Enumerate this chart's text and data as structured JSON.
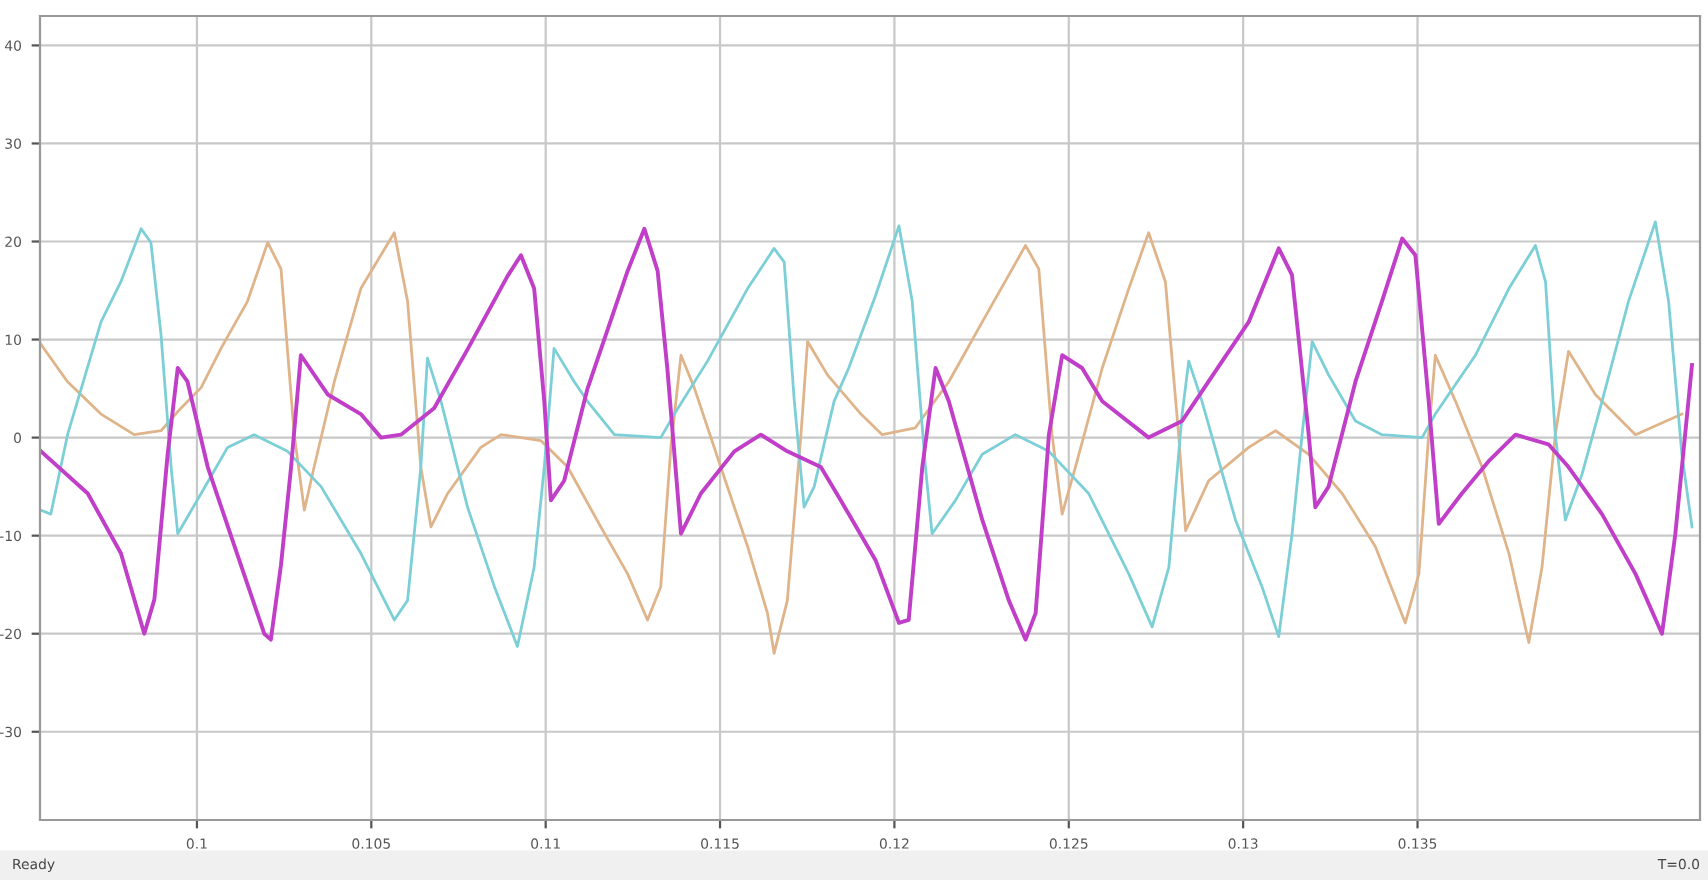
{
  "chart_data": {
    "type": "line",
    "xlim": [
      0.0955,
      0.1431
    ],
    "xticks": [
      0.1,
      0.105,
      0.11,
      0.115,
      0.12,
      0.125,
      0.13,
      0.135
    ],
    "ylim": [
      -39,
      43
    ],
    "yticks": [
      -30,
      -20,
      -10,
      0,
      10,
      20,
      30,
      40
    ],
    "grid": true,
    "annotations": [
      "Ready",
      "T=0.0"
    ],
    "series": [
      {
        "color": "#e0b48a",
        "x": [
          0.09553,
          0.09629,
          0.09725,
          0.0982,
          0.09897,
          0.09954,
          0.10012,
          0.10069,
          0.10145,
          0.10203,
          0.10241,
          0.10279,
          0.10308,
          0.10336,
          0.10394,
          0.1047,
          0.10566,
          0.10604,
          0.10642,
          0.10671,
          0.10719,
          0.10814,
          0.10872,
          0.10986,
          0.11063,
          0.11158,
          0.11235,
          0.11292,
          0.1133,
          0.11359,
          0.11388,
          0.11426,
          0.11502,
          0.11579,
          0.11636,
          0.11655,
          0.11693,
          0.11732,
          0.11751,
          0.11808,
          0.11904,
          0.11965,
          0.1206,
          0.12156,
          0.12252,
          0.12376,
          0.12414,
          0.12452,
          0.12481,
          0.12519,
          0.12596,
          0.12672,
          0.12729,
          0.12777,
          0.12815,
          0.12835,
          0.12901,
          0.13016,
          0.13093,
          0.13188,
          0.13284,
          0.13379,
          0.13465,
          0.13504,
          0.13532,
          0.13551,
          0.13609,
          0.13685,
          0.13762,
          0.13819,
          0.13857,
          0.13895,
          0.13933,
          0.1401,
          0.14125,
          0.14258
        ],
        "values": [
          9.5,
          5.7,
          2.4,
          0.3,
          0.7,
          3,
          5.1,
          9.1,
          13.9,
          19.9,
          17.2,
          0.3,
          -7.4,
          -3,
          5.7,
          15.2,
          20.9,
          13.9,
          -3,
          -9.1,
          -5.7,
          -1,
          0.3,
          -0.3,
          -3,
          -9.1,
          -13.9,
          -18.6,
          -15.2,
          -1,
          8.4,
          5.1,
          -3,
          -11.1,
          -17.9,
          -22,
          -16.6,
          0.3,
          9.8,
          6.4,
          2.4,
          0.3,
          1,
          5.7,
          11.8,
          19.6,
          17.2,
          0.3,
          -7.8,
          -3,
          7.1,
          15.2,
          20.9,
          15.9,
          0.3,
          -9.5,
          -4.4,
          -1,
          0.7,
          -1.7,
          -5.7,
          -11.1,
          -18.9,
          -13.9,
          0.3,
          8.4,
          3.7,
          -3,
          -11.8,
          -20.9,
          -13.2,
          0.3,
          8.8,
          4.4,
          0.3,
          2.4
        ]
      },
      {
        "color": "#7ccfd6",
        "x": [
          0.09553,
          0.09581,
          0.09629,
          0.09725,
          0.09782,
          0.0984,
          0.09868,
          0.09897,
          0.09926,
          0.09945,
          0.10012,
          0.10088,
          0.10164,
          0.1026,
          0.10356,
          0.1047,
          0.10566,
          0.10604,
          0.10642,
          0.10661,
          0.107,
          0.10776,
          0.10853,
          0.10919,
          0.10967,
          0.10996,
          0.11024,
          0.11082,
          0.1112,
          0.11197,
          0.1133,
          0.11369,
          0.11464,
          0.11579,
          0.11655,
          0.11684,
          0.11713,
          0.11741,
          0.1177,
          0.11827,
          0.11869,
          0.11946,
          0.12013,
          0.12051,
          0.12089,
          0.12108,
          0.12175,
          0.12252,
          0.12347,
          0.12443,
          0.12557,
          0.12672,
          0.12739,
          0.12787,
          0.12825,
          0.12844,
          0.12882,
          0.12978,
          0.13054,
          0.13102,
          0.1314,
          0.13169,
          0.13198,
          0.13245,
          0.13322,
          0.13398,
          0.13513,
          0.13551,
          0.13666,
          0.13762,
          0.13838,
          0.13867,
          0.13895,
          0.13924,
          0.13972,
          0.14029,
          0.14105,
          0.14182,
          0.1422,
          0.14258,
          0.14287
        ],
        "values": [
          -7.4,
          -7.8,
          0.3,
          11.8,
          15.9,
          21.3,
          19.9,
          10.5,
          -3,
          -9.8,
          -5.7,
          -1,
          0.3,
          -1.4,
          -5,
          -11.8,
          -18.6,
          -16.6,
          -3,
          8.1,
          3.7,
          -7.1,
          -15.2,
          -21.3,
          -13.2,
          -3,
          9.1,
          5.7,
          3.7,
          0.3,
          0,
          2.4,
          7.8,
          15.2,
          19.3,
          17.9,
          3.7,
          -7.1,
          -5,
          3.7,
          7.1,
          14.5,
          21.6,
          13.9,
          -3,
          -9.8,
          -6.4,
          -1.7,
          0.3,
          -1.4,
          -5.7,
          -13.9,
          -19.3,
          -13.2,
          2.4,
          7.8,
          3.7,
          -8.4,
          -15.2,
          -20.3,
          -9.9,
          0.3,
          9.8,
          6.4,
          1.7,
          0.3,
          0,
          2.4,
          8.4,
          15.2,
          19.6,
          15.9,
          0.3,
          -8.4,
          -3.7,
          3.7,
          13.9,
          22,
          13.9,
          -1.7,
          -9.1
        ]
      },
      {
        "color": "#c03ec8",
        "x": [
          0.09553,
          0.09687,
          0.09782,
          0.09849,
          0.09878,
          0.09916,
          0.09945,
          0.09973,
          0.10031,
          0.10107,
          0.10193,
          0.10212,
          0.10241,
          0.1027,
          0.10298,
          0.10375,
          0.1047,
          0.10528,
          0.10585,
          0.1068,
          0.10776,
          0.10891,
          0.10929,
          0.10967,
          0.10996,
          0.11015,
          0.11053,
          0.1112,
          0.11235,
          0.11283,
          0.11321,
          0.11349,
          0.11388,
          0.11445,
          0.11541,
          0.11617,
          0.11693,
          0.11789,
          0.11846,
          0.11869,
          0.11946,
          0.12013,
          0.12041,
          0.1208,
          0.12118,
          0.12156,
          0.12252,
          0.12328,
          0.12376,
          0.12405,
          0.12443,
          0.12481,
          0.12538,
          0.12596,
          0.12729,
          0.12825,
          0.1294,
          0.13016,
          0.13102,
          0.1314,
          0.13188,
          0.13207,
          0.13245,
          0.13322,
          0.13398,
          0.13456,
          0.13494,
          0.13532,
          0.13561,
          0.13627,
          0.13704,
          0.13781,
          0.13876,
          0.13933,
          0.14029,
          0.14125,
          0.14201,
          0.14239,
          0.14287
        ],
        "values": [
          -1.4,
          -5.7,
          -11.8,
          -20,
          -16.5,
          -1.7,
          7.1,
          5.7,
          -3,
          -11,
          -20,
          -20.6,
          -13,
          -3,
          8.4,
          4.4,
          2.4,
          0,
          0.3,
          3,
          9,
          16.5,
          18.6,
          15.2,
          3.7,
          -6.4,
          -4.4,
          5,
          17,
          21.3,
          17,
          7,
          -9.8,
          -5.7,
          -1.4,
          0.3,
          -1.4,
          -3,
          -6.4,
          -7.8,
          -12.5,
          -18.9,
          -18.6,
          -3,
          7.1,
          3.7,
          -8.4,
          -16.6,
          -20.6,
          -17.9,
          0.3,
          8.4,
          7.1,
          3.7,
          0,
          1.7,
          7.8,
          11.8,
          19.3,
          16.6,
          0.3,
          -7.1,
          -5,
          5.7,
          13.9,
          20.3,
          18.6,
          3.7,
          -8.8,
          -5.7,
          -2.4,
          0.3,
          -0.7,
          -3,
          -7.8,
          -13.9,
          -20,
          -9.9,
          7.4
        ]
      }
    ]
  }
}
